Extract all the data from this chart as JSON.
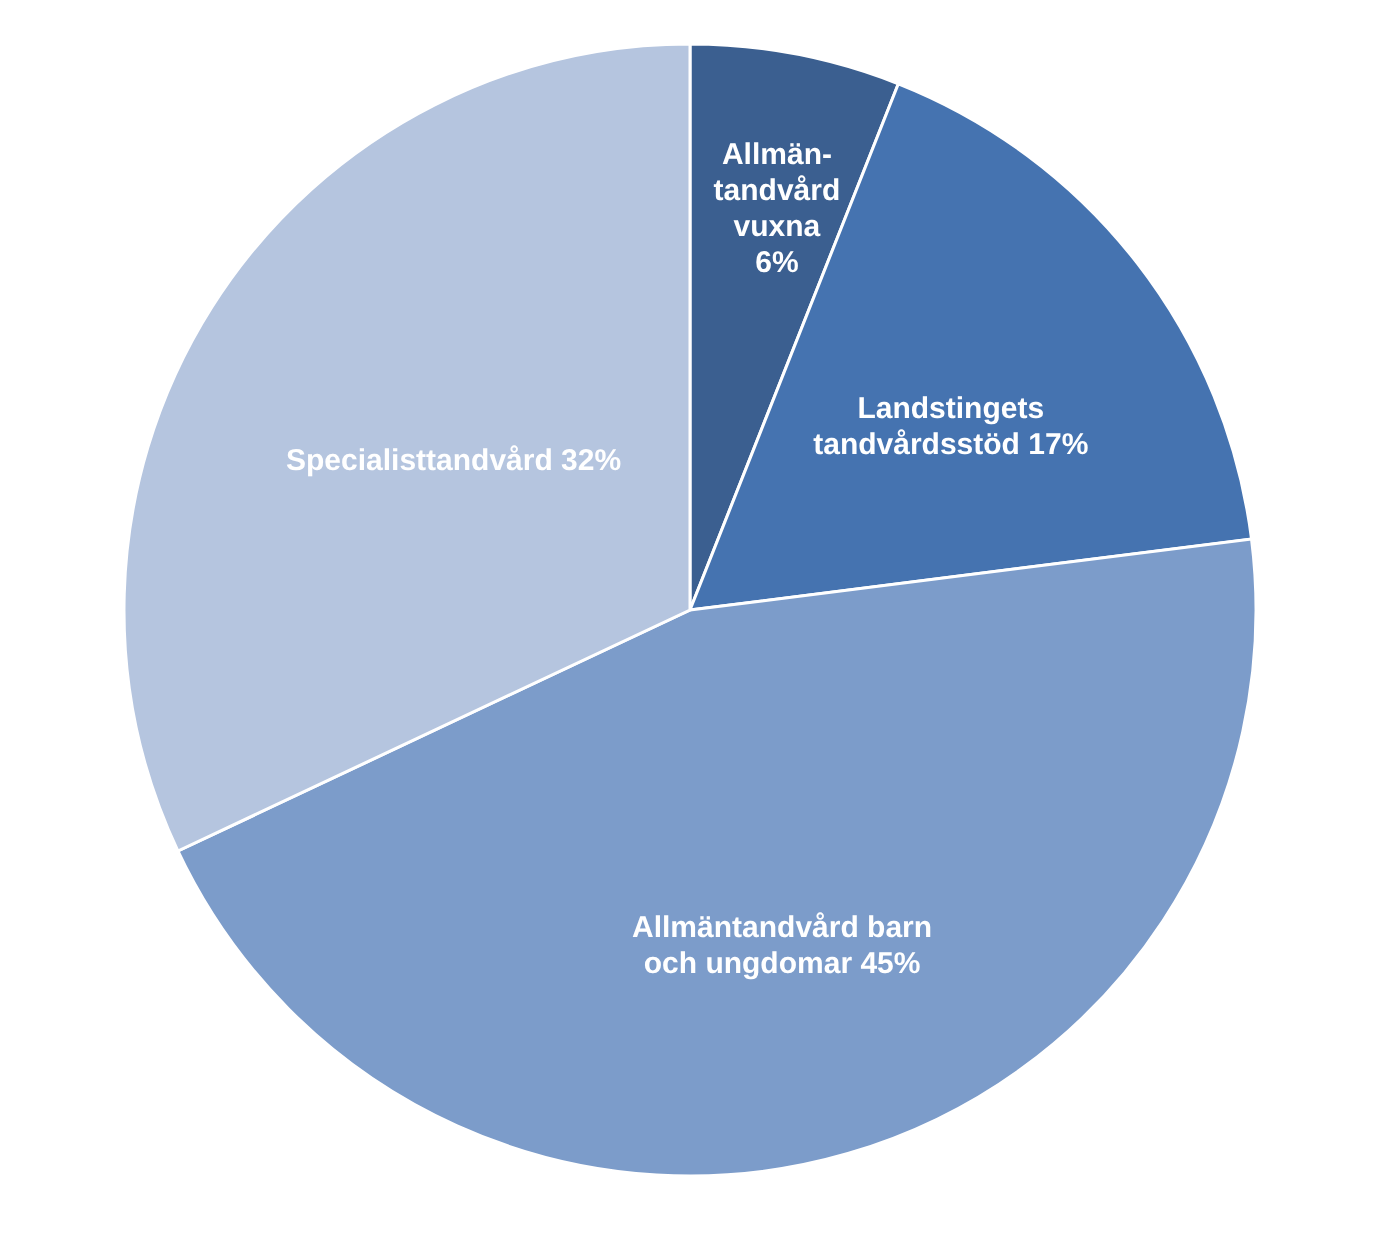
{
  "chart_data": {
    "type": "pie",
    "categories": [
      "Allmän-\ntandvård\nvuxna\n",
      "Landstingets\ntandvårdsstöd",
      "Allmäntandvård barn\noch ungdomar",
      "Specialisttandvård"
    ],
    "values": [
      6,
      17,
      45,
      32
    ],
    "value_labels": [
      "6%",
      "17%",
      "45%",
      "32%"
    ],
    "colors": [
      "#3b5f90",
      "#4573b0",
      "#7c9cca",
      "#b5c5df"
    ],
    "legend": false
  }
}
